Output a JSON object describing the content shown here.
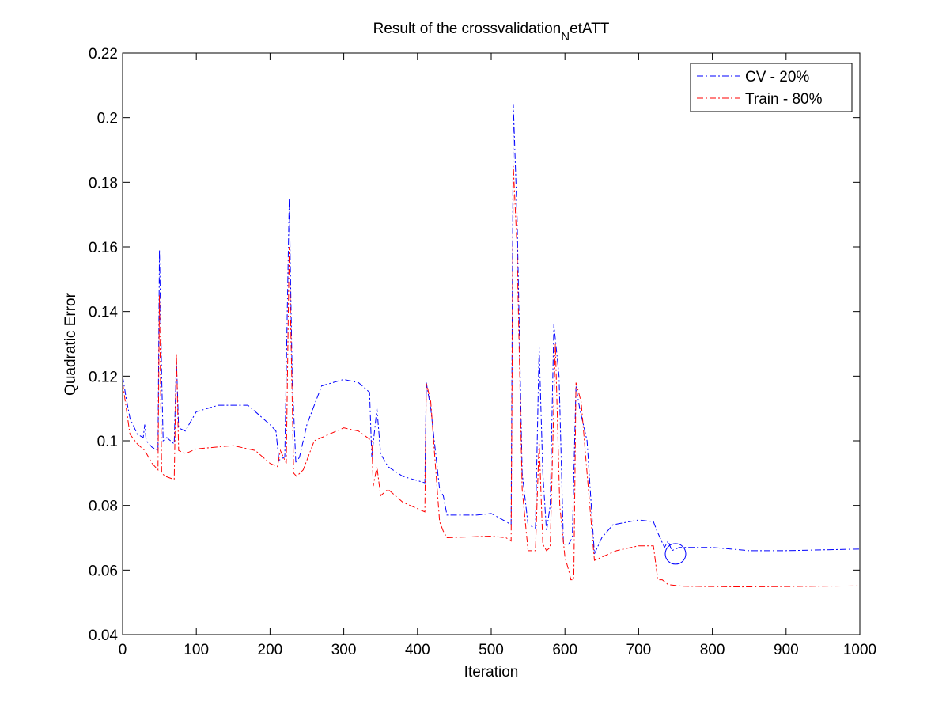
{
  "chart_data": {
    "type": "line",
    "title": [
      "Result of the crossvalidation",
      "N",
      "etATT"
    ],
    "x_label": "Iteration",
    "y_label": "Quadratic Error",
    "xlim": [
      0,
      1000
    ],
    "ylim": [
      0.04,
      0.22
    ],
    "xticks": [
      0,
      100,
      200,
      300,
      400,
      500,
      600,
      700,
      800,
      900,
      1000
    ],
    "yticks": [
      0.04,
      0.06,
      0.08,
      0.1,
      0.12,
      0.14,
      0.16,
      0.18,
      0.2,
      0.22
    ],
    "legend": "upper right",
    "series": [
      {
        "name": "CV - 20%",
        "color": "#0000ff",
        "x": [
          0,
          5,
          10,
          20,
          28,
          30,
          32,
          40,
          48,
          50,
          53,
          55,
          60,
          70,
          73,
          76,
          85,
          100,
          130,
          170,
          200,
          208,
          212,
          220,
          226,
          230,
          235,
          240,
          250,
          270,
          300,
          320,
          335,
          338,
          345,
          350,
          360,
          380,
          410,
          412,
          418,
          430,
          435,
          440,
          480,
          500,
          520,
          527,
          530,
          535,
          542,
          550,
          560,
          565,
          570,
          575,
          580,
          585,
          592,
          598,
          605,
          610,
          615,
          620,
          630,
          640,
          650,
          665,
          700,
          720,
          725,
          735,
          740,
          745,
          755,
          800,
          850,
          900,
          1000
        ],
        "values": [
          0.12,
          0.113,
          0.107,
          0.102,
          0.101,
          0.105,
          0.1,
          0.098,
          0.097,
          0.159,
          0.12,
          0.1,
          0.101,
          0.099,
          0.125,
          0.104,
          0.103,
          0.109,
          0.111,
          0.111,
          0.105,
          0.103,
          0.094,
          0.095,
          0.175,
          0.12,
          0.093,
          0.095,
          0.105,
          0.117,
          0.119,
          0.118,
          0.115,
          0.095,
          0.11,
          0.096,
          0.092,
          0.089,
          0.087,
          0.118,
          0.11,
          0.085,
          0.083,
          0.077,
          0.077,
          0.0775,
          0.075,
          0.074,
          0.204,
          0.17,
          0.09,
          0.074,
          0.073,
          0.129,
          0.09,
          0.072,
          0.08,
          0.136,
          0.12,
          0.068,
          0.068,
          0.07,
          0.117,
          0.11,
          0.1,
          0.065,
          0.07,
          0.074,
          0.0755,
          0.075,
          0.072,
          0.067,
          0.069,
          0.066,
          0.067,
          0.067,
          0.066,
          0.066,
          0.0665
        ]
      },
      {
        "name": "Train - 80%",
        "color": "#ff0000",
        "x": [
          0,
          10,
          20,
          30,
          40,
          48,
          50,
          53,
          58,
          70,
          73,
          76,
          85,
          100,
          150,
          180,
          200,
          210,
          214,
          222,
          226,
          232,
          236,
          245,
          260,
          300,
          320,
          338,
          340,
          345,
          350,
          360,
          380,
          410,
          412,
          418,
          430,
          435,
          440,
          500,
          520,
          527,
          530,
          535,
          542,
          550,
          560,
          565,
          570,
          575,
          580,
          587,
          593,
          600,
          605,
          608,
          612,
          615,
          622,
          630,
          640,
          650,
          670,
          700,
          720,
          726,
          732,
          740,
          760,
          840,
          1000
        ],
        "values": [
          0.118,
          0.102,
          0.099,
          0.097,
          0.093,
          0.091,
          0.145,
          0.09,
          0.089,
          0.088,
          0.127,
          0.097,
          0.096,
          0.0975,
          0.0985,
          0.097,
          0.093,
          0.092,
          0.097,
          0.093,
          0.16,
          0.09,
          0.089,
          0.091,
          0.1,
          0.104,
          0.103,
          0.1,
          0.086,
          0.092,
          0.083,
          0.085,
          0.081,
          0.078,
          0.118,
          0.112,
          0.075,
          0.072,
          0.07,
          0.0705,
          0.07,
          0.069,
          0.185,
          0.16,
          0.085,
          0.066,
          0.066,
          0.1,
          0.068,
          0.066,
          0.067,
          0.13,
          0.08,
          0.064,
          0.06,
          0.057,
          0.057,
          0.118,
          0.112,
          0.09,
          0.063,
          0.064,
          0.066,
          0.0675,
          0.0675,
          0.057,
          0.057,
          0.0555,
          0.055,
          0.0548,
          0.0551
        ]
      }
    ],
    "marker": {
      "x": 750,
      "y": 0.065,
      "color": "#0000ff"
    }
  }
}
